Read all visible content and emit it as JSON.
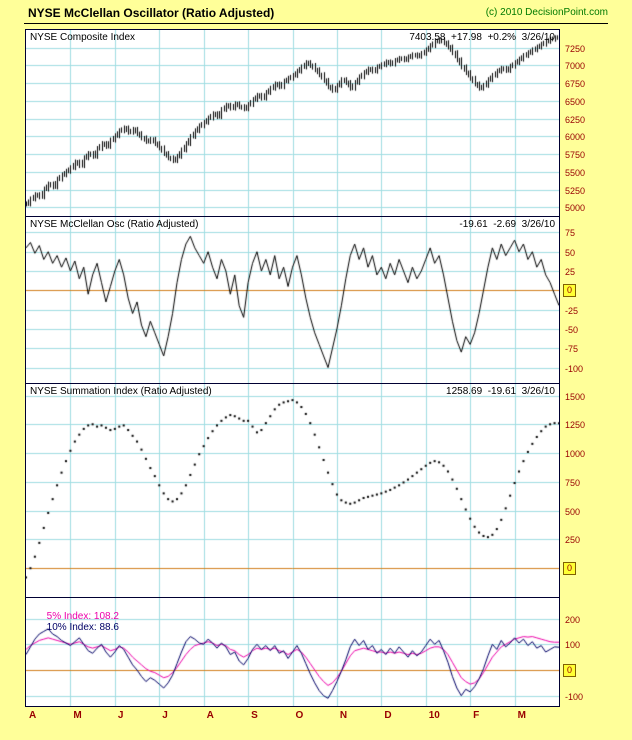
{
  "header": {
    "title": "NYSE McClellan Oscillator (Ratio Adjusted)",
    "copyright": "(c) 2010 DecisionPoint.com"
  },
  "colors": {
    "background": "#FFFF99",
    "plot_background": "#FFFFFF",
    "grid": "#9FDDE2",
    "panel_border": "#000033",
    "zero_line": "#D2801E",
    "axis_label": "#990000",
    "copyright": "#007A00",
    "series_black": "#000000",
    "five_pct_index": "#EE00AA",
    "ten_pct_index": "#000066"
  },
  "chart_data": {
    "type": "line",
    "x_labels": [
      "A",
      "M",
      "J",
      "J",
      "A",
      "S",
      "O",
      "N",
      "D",
      "10",
      "F",
      "M"
    ],
    "legend_position": "top-left",
    "grid": true,
    "panels": [
      {
        "title": "NYSE Composite Index",
        "values_label": "7403.58  +17.98  +0.2%  3/26/10",
        "type": "ohlc",
        "yticks": [
          7250,
          7000,
          6750,
          6500,
          6250,
          6000,
          5750,
          5500,
          5250,
          5000
        ],
        "ylim": [
          4880,
          7500
        ],
        "zero_line": false,
        "series": [
          {
            "name": "NYSE Composite Index",
            "color": "#000000",
            "values": [
              5050,
              5120,
              5180,
              5150,
              5260,
              5330,
              5290,
              5400,
              5460,
              5510,
              5560,
              5640,
              5590,
              5700,
              5760,
              5720,
              5830,
              5900,
              5860,
              5950,
              6010,
              6080,
              6120,
              6060,
              6100,
              6040,
              5980,
              5930,
              5960,
              5900,
              5840,
              5760,
              5700,
              5660,
              5720,
              5810,
              5900,
              6000,
              6080,
              6150,
              6200,
              6260,
              6320,
              6280,
              6380,
              6440,
              6400,
              6460,
              6420,
              6390,
              6450,
              6520,
              6580,
              6540,
              6620,
              6680,
              6740,
              6700,
              6780,
              6820,
              6860,
              6920,
              6980,
              7040,
              7000,
              6940,
              6870,
              6790,
              6700,
              6650,
              6720,
              6800,
              6760,
              6680,
              6760,
              6840,
              6900,
              6950,
              6920,
              6980,
              7010,
              7050,
              7020,
              7070,
              7100,
              7080,
              7120,
              7150,
              7130,
              7170,
              7220,
              7280,
              7340,
              7360,
              7320,
              7260,
              7180,
              7080,
              6980,
              6900,
              6820,
              6740,
              6680,
              6720,
              6800,
              6860,
              6920,
              6960,
              6930,
              6990,
              7040,
              7090,
              7140,
              7180,
              7220,
              7260,
              7300,
              7340,
              7370,
              7390,
              7403.58
            ]
          }
        ]
      },
      {
        "title": "NYSE McClellan Osc (Ratio Adjusted)",
        "values_label": "-19.61  -2.69  3/26/10",
        "type": "line",
        "yticks": [
          75,
          50,
          25,
          0,
          -25,
          -50,
          -75,
          -100
        ],
        "ylim": [
          -120,
          95
        ],
        "zero_line": true,
        "series": [
          {
            "name": "NYSE McClellan Oscillator",
            "color": "#000000",
            "values": [
              55,
              62,
              48,
              58,
              40,
              50,
              35,
              45,
              30,
              42,
              25,
              38,
              15,
              30,
              -5,
              20,
              35,
              10,
              -15,
              5,
              25,
              40,
              20,
              -10,
              -30,
              -15,
              -45,
              -60,
              -40,
              -55,
              -70,
              -85,
              -60,
              -30,
              10,
              40,
              60,
              70,
              55,
              45,
              35,
              50,
              30,
              15,
              40,
              25,
              -5,
              20,
              -20,
              -35,
              10,
              35,
              50,
              25,
              40,
              20,
              45,
              15,
              30,
              5,
              30,
              45,
              20,
              -10,
              -35,
              -55,
              -70,
              -85,
              -100,
              -75,
              -50,
              -20,
              15,
              45,
              60,
              40,
              55,
              30,
              45,
              20,
              30,
              15,
              35,
              20,
              40,
              25,
              10,
              30,
              15,
              25,
              40,
              55,
              35,
              45,
              20,
              -10,
              -40,
              -65,
              -80,
              -60,
              -70,
              -55,
              -30,
              0,
              30,
              55,
              40,
              60,
              45,
              55,
              65,
              50,
              60,
              40,
              50,
              30,
              40,
              20,
              10,
              -5,
              -19.61
            ]
          }
        ]
      },
      {
        "title": "NYSE Summation Index (Ratio Adjusted)",
        "values_label": "1258.69  -19.61  3/26/10",
        "type": "dots",
        "yticks": [
          1500,
          1250,
          1000,
          750,
          500,
          250,
          0
        ],
        "ylim": [
          -250,
          1600
        ],
        "zero_line": true,
        "series": [
          {
            "name": "NYSE Summation Index",
            "color": "#000000",
            "values": [
              -80,
              0,
              100,
              220,
              350,
              480,
              600,
              720,
              830,
              930,
              1020,
              1100,
              1160,
              1210,
              1240,
              1250,
              1230,
              1240,
              1220,
              1200,
              1210,
              1230,
              1240,
              1200,
              1150,
              1100,
              1030,
              950,
              870,
              800,
              720,
              650,
              600,
              580,
              600,
              650,
              720,
              810,
              900,
              990,
              1060,
              1130,
              1190,
              1240,
              1280,
              1310,
              1330,
              1320,
              1300,
              1280,
              1280,
              1230,
              1180,
              1200,
              1260,
              1320,
              1380,
              1420,
              1440,
              1450,
              1460,
              1440,
              1400,
              1340,
              1260,
              1160,
              1050,
              940,
              830,
              730,
              640,
              590,
              570,
              560,
              570,
              590,
              610,
              620,
              630,
              640,
              650,
              665,
              680,
              700,
              720,
              745,
              770,
              800,
              830,
              860,
              890,
              915,
              930,
              920,
              890,
              840,
              770,
              690,
              600,
              510,
              430,
              360,
              310,
              280,
              270,
              290,
              340,
              420,
              520,
              630,
              740,
              840,
              930,
              1010,
              1080,
              1140,
              1190,
              1230,
              1250,
              1260,
              1258.69
            ]
          }
        ]
      },
      {
        "title_parts": [
          {
            "text": "5% Index: 108.2",
            "color": "#EE00AA"
          },
          {
            "text": "10% Index: 88.6",
            "color": "#000066"
          }
        ],
        "type": "line",
        "yticks": [
          200,
          100,
          0,
          -100
        ],
        "ylim": [
          -140,
          280
        ],
        "zero_line": true,
        "series": [
          {
            "name": "5% Index",
            "color": "#EE00AA",
            "values": [
              80,
              95,
              105,
              115,
              120,
              125,
              120,
              115,
              110,
              105,
              100,
              105,
              110,
              100,
              90,
              85,
              90,
              95,
              85,
              75,
              80,
              90,
              85,
              70,
              50,
              35,
              20,
              5,
              -5,
              -10,
              -20,
              -30,
              -25,
              -10,
              10,
              35,
              60,
              80,
              95,
              100,
              105,
              110,
              105,
              95,
              100,
              95,
              80,
              75,
              60,
              50,
              60,
              75,
              85,
              80,
              85,
              80,
              85,
              75,
              70,
              60,
              70,
              80,
              70,
              50,
              25,
              0,
              -25,
              -45,
              -60,
              -50,
              -30,
              -5,
              25,
              55,
              75,
              80,
              85,
              80,
              75,
              70,
              70,
              65,
              70,
              65,
              70,
              65,
              60,
              65,
              60,
              65,
              75,
              85,
              90,
              90,
              80,
              60,
              30,
              0,
              -30,
              -45,
              -55,
              -50,
              -35,
              -10,
              20,
              50,
              70,
              90,
              100,
              110,
              120,
              125,
              130,
              128,
              130,
              125,
              120,
              115,
              110,
              108,
              108.2
            ]
          },
          {
            "name": "10% Index",
            "color": "#000066",
            "values": [
              60,
              90,
              120,
              140,
              150,
              160,
              140,
              130,
              115,
              105,
              95,
              110,
              125,
              100,
              75,
              65,
              85,
              100,
              70,
              50,
              70,
              95,
              80,
              50,
              20,
              0,
              -25,
              -45,
              -30,
              -40,
              -55,
              -70,
              -50,
              -20,
              25,
              70,
              110,
              130,
              120,
              105,
              100,
              120,
              105,
              85,
              105,
              90,
              60,
              70,
              35,
              20,
              45,
              80,
              100,
              80,
              95,
              75,
              95,
              65,
              75,
              45,
              70,
              95,
              65,
              25,
              -15,
              -50,
              -80,
              -100,
              -110,
              -80,
              -45,
              -5,
              40,
              90,
              120,
              95,
              115,
              80,
              95,
              65,
              80,
              60,
              85,
              65,
              90,
              70,
              50,
              75,
              55,
              70,
              95,
              120,
              100,
              115,
              75,
              30,
              -25,
              -70,
              -100,
              -75,
              -85,
              -65,
              -35,
              5,
              55,
              100,
              80,
              115,
              90,
              105,
              125,
              105,
              120,
              95,
              110,
              85,
              95,
              70,
              80,
              90,
              88.6
            ]
          }
        ]
      }
    ]
  }
}
